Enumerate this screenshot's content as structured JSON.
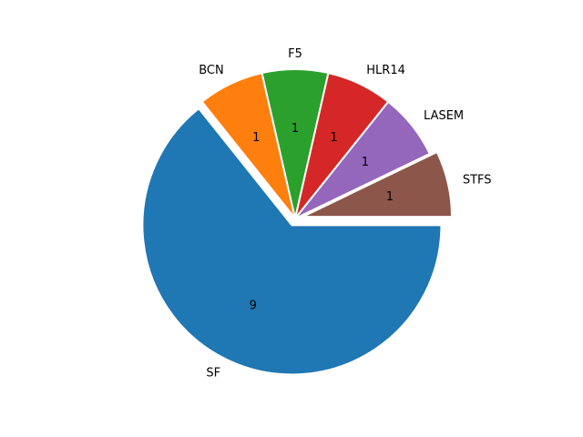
{
  "chart_data": {
    "type": "pie",
    "categories": [
      "SF",
      "BCN",
      "F5",
      "HLR14",
      "LASEM",
      "STFS"
    ],
    "values": [
      9,
      1,
      1,
      1,
      1,
      1
    ],
    "value_labels": [
      "9",
      "1",
      "1",
      "1",
      "1",
      "1"
    ],
    "colors": [
      "#1f77b4",
      "#ff7f0e",
      "#2ca02c",
      "#d62728",
      "#9467bd",
      "#8c564b"
    ],
    "exploded": [
      "SF",
      "STFS"
    ],
    "direction": "clockwise",
    "title": "",
    "legend": false
  }
}
